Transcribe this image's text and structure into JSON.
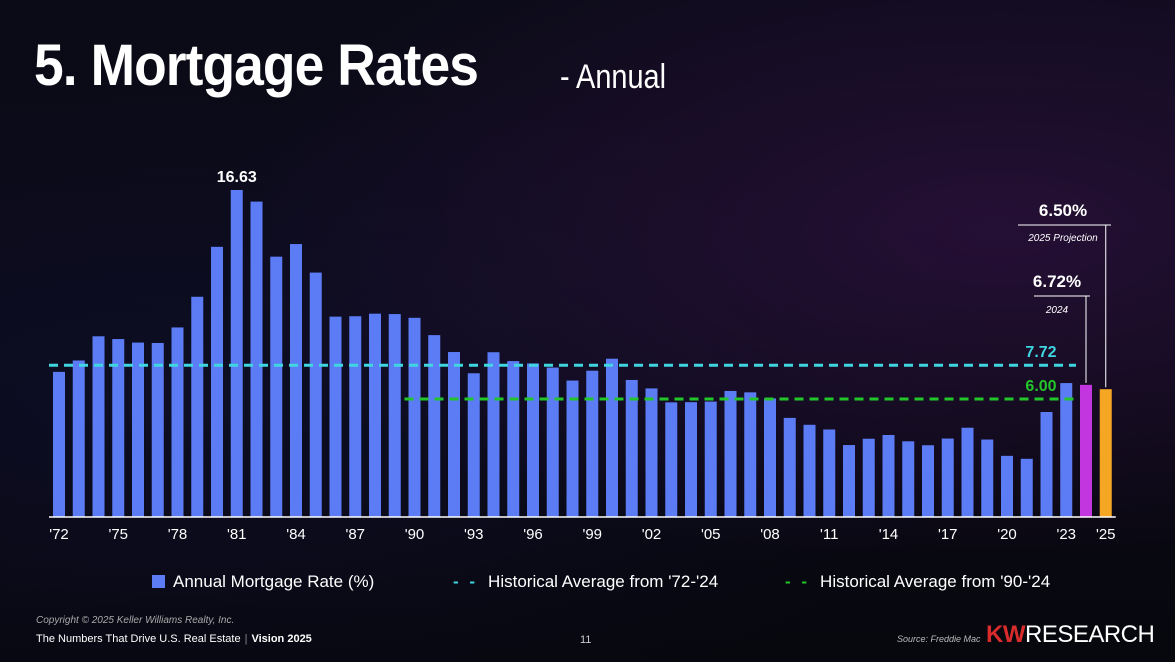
{
  "header": {
    "title": "5. Mortgage Rates",
    "subtitle": "- Annual"
  },
  "chart_data": {
    "type": "bar",
    "title": "5. Mortgage Rates - Annual",
    "x": [
      "1972",
      "1973",
      "1974",
      "1975",
      "1976",
      "1977",
      "1978",
      "1979",
      "1980",
      "1981",
      "1982",
      "1983",
      "1984",
      "1985",
      "1986",
      "1987",
      "1988",
      "1989",
      "1990",
      "1991",
      "1992",
      "1993",
      "1994",
      "1995",
      "1996",
      "1997",
      "1998",
      "1999",
      "2000",
      "2001",
      "2002",
      "2003",
      "2004",
      "2005",
      "2006",
      "2007",
      "2008",
      "2009",
      "2010",
      "2011",
      "2012",
      "2013",
      "2014",
      "2015",
      "2016",
      "2017",
      "2018",
      "2019",
      "2020",
      "2021",
      "2022",
      "2023",
      "2024",
      "2025"
    ],
    "values": [
      7.38,
      7.96,
      9.19,
      9.05,
      8.87,
      8.85,
      9.64,
      11.2,
      13.74,
      16.63,
      16.04,
      13.24,
      13.88,
      12.43,
      10.19,
      10.21,
      10.34,
      10.32,
      10.13,
      9.25,
      8.39,
      7.31,
      8.38,
      7.93,
      7.81,
      7.6,
      6.94,
      7.44,
      8.05,
      6.97,
      6.54,
      5.83,
      5.84,
      5.87,
      6.41,
      6.34,
      6.03,
      5.04,
      4.69,
      4.45,
      3.66,
      3.98,
      4.17,
      3.85,
      3.65,
      3.99,
      4.54,
      3.94,
      3.11,
      2.96,
      5.34,
      6.81,
      6.72,
      6.5
    ],
    "tick_labels": [
      "'72",
      "'75",
      "'78",
      "'81",
      "'84",
      "'87",
      "'90",
      "'93",
      "'96",
      "'99",
      "'02",
      "'05",
      "'08",
      "'11",
      "'14",
      "'17",
      "'20",
      "'23",
      "'25"
    ],
    "series": [
      {
        "name": "Annual Mortgage Rate (%)",
        "color": "#5b7cf5"
      },
      {
        "name": "Historical Average from '72-'24",
        "value": 7.72,
        "color": "#3fd6e0",
        "style": "dashed",
        "range": [
          "1972",
          "2024"
        ]
      },
      {
        "name": "Historical Average from '90-'24",
        "value": 6.0,
        "color": "#22c52a",
        "style": "dashed",
        "range": [
          "1990",
          "2024"
        ]
      }
    ],
    "highlight_colors": {
      "2024": "#c236e0",
      "2025": "#f5a623"
    },
    "annotations": [
      {
        "label": "16.63",
        "x": "1981"
      },
      {
        "label": "7.72",
        "color": "#3fd6e0"
      },
      {
        "label": "6.00",
        "color": "#22c52a"
      },
      {
        "label": "6.72%",
        "sub": "2024",
        "x": "2024"
      },
      {
        "label": "6.50%",
        "sub": "2025 Projection",
        "x": "2025"
      }
    ],
    "ylim": [
      0,
      17.5
    ],
    "xlabel": "",
    "ylabel": "",
    "grid": false,
    "legend": "bottom"
  },
  "legend": {
    "bar": "Annual Mortgage Rate (%)",
    "avg_all": "Historical Average from '72-'24",
    "avg_90": "Historical Average from '90-'24",
    "dash": "- -"
  },
  "footer": {
    "copyright": "Copyright © 2025 Keller Williams Realty, Inc.",
    "tagline": "The Numbers That Drive U.S. Real Estate",
    "separator": "|",
    "edition": "Vision 2025",
    "page": "11",
    "source": "Source: Freddie Mac",
    "brand_kw": "KW",
    "brand_research": "RESEARCH"
  }
}
